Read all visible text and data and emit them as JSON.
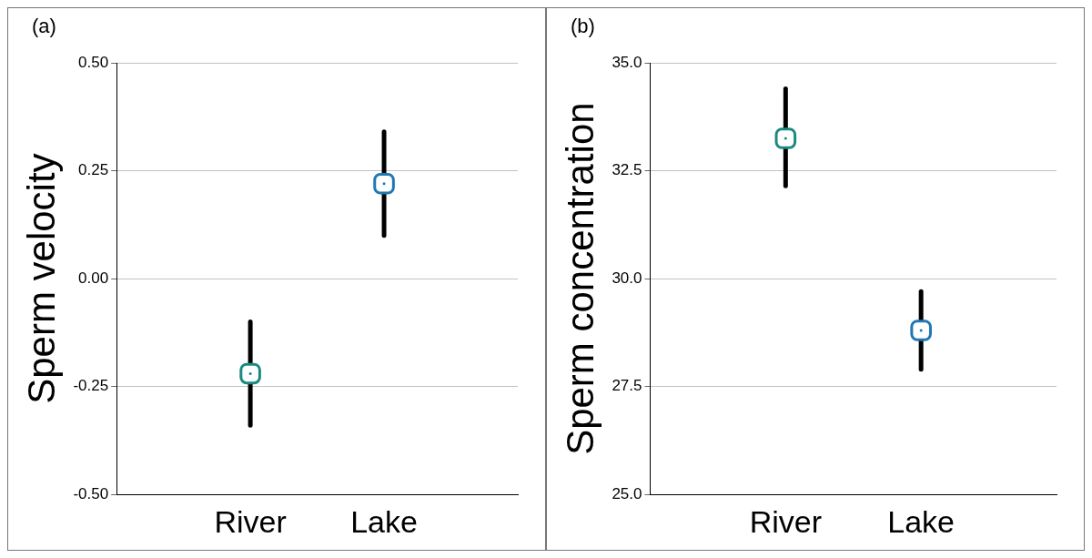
{
  "chart_data": [
    {
      "type": "scatter",
      "title": "(a)",
      "ylabel": "Sperm velocity",
      "categories": [
        "River",
        "Lake"
      ],
      "values": [
        -0.22,
        0.22
      ],
      "errors": [
        [
          -0.34,
          -0.1
        ],
        [
          0.1,
          0.34
        ]
      ],
      "colors": [
        "#1a8a80",
        "#1f77b4"
      ],
      "ylim": [
        -0.5,
        0.5
      ],
      "yticks": [
        {
          "value": -0.5,
          "label": "-0.50"
        },
        {
          "value": -0.25,
          "label": "-0.25"
        },
        {
          "value": 0,
          "label": "0.00"
        },
        {
          "value": 0.25,
          "label": "0.25"
        },
        {
          "value": 0.5,
          "label": "0.50"
        }
      ],
      "grid": "y",
      "marker": "square"
    },
    {
      "type": "scatter",
      "title": "(b)",
      "ylabel": "Sperm concentration",
      "categories": [
        "River",
        "Lake"
      ],
      "values": [
        33.25,
        28.8
      ],
      "errors": [
        [
          32.15,
          34.4
        ],
        [
          27.9,
          29.7
        ]
      ],
      "colors": [
        "#1a8a80",
        "#1f77b4"
      ],
      "ylim": [
        25,
        35
      ],
      "yticks": [
        {
          "value": 25,
          "label": "25.0"
        },
        {
          "value": 27.5,
          "label": "27.5"
        },
        {
          "value": 30,
          "label": "30.0"
        },
        {
          "value": 32.5,
          "label": "32.5"
        },
        {
          "value": 35,
          "label": "35.0"
        }
      ],
      "grid": "y",
      "marker": "square"
    }
  ]
}
